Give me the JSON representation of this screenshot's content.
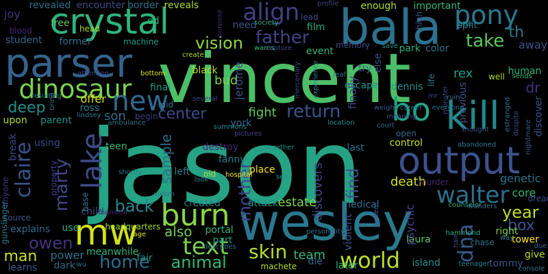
{
  "background_color": "#000000",
  "words": [
    {
      "text": "jason",
      "color": "#26a384"
    },
    {
      "text": "vincent",
      "color": "#4cbe67"
    },
    {
      "text": "wesley",
      "color": "#2a788e"
    },
    {
      "text": "bala",
      "color": "#2c718e"
    },
    {
      "text": "parser",
      "color": "#33638d"
    },
    {
      "text": "crystal",
      "color": "#2fb47c"
    },
    {
      "text": "output",
      "color": "#3b528b"
    },
    {
      "text": "kill",
      "color": "#23898e"
    },
    {
      "text": "mw",
      "color": "#d2e21b"
    },
    {
      "text": "dinosaur",
      "color": "#7ad151"
    },
    {
      "text": "burn",
      "color": "#8bd646"
    },
    {
      "text": "pony",
      "color": "#2a788e"
    },
    {
      "text": "bo",
      "color": "#20a486"
    },
    {
      "text": "new",
      "color": "#31688e"
    },
    {
      "text": "lake",
      "color": "#3e4a89"
    },
    {
      "text": "walter",
      "color": "#2c718e"
    },
    {
      "text": "world",
      "color": "#bddf26"
    },
    {
      "text": "text",
      "color": "#7ad151"
    },
    {
      "text": "align",
      "color": "#433e85"
    },
    {
      "text": "father",
      "color": "#414487"
    },
    {
      "text": "return",
      "color": "#3b528b"
    },
    {
      "text": "vision",
      "color": "#8fd744"
    },
    {
      "text": "take",
      "color": "#5ec962"
    },
    {
      "text": "home",
      "color": "#2f6c8e"
    },
    {
      "text": "animal",
      "color": "#35b779"
    },
    {
      "text": "skin",
      "color": "#b5de2b"
    },
    {
      "text": "claire",
      "color": "#3b528b"
    },
    {
      "text": "marty",
      "color": "#404688"
    },
    {
      "text": "center",
      "color": "#3e4989"
    },
    {
      "text": "back",
      "color": "#23898e"
    },
    {
      "text": "owen",
      "color": "#46337e"
    },
    {
      "text": "mother",
      "color": "#3e4989"
    },
    {
      "text": "dna",
      "color": "#365c8d"
    },
    {
      "text": "year",
      "color": "#c2df23"
    },
    {
      "text": "find",
      "color": "#3b528b"
    },
    {
      "text": "man",
      "color": "#c8e020"
    },
    {
      "text": "deep",
      "color": "#21918c"
    },
    {
      "text": "son",
      "color": "#2d708e"
    },
    {
      "text": "sample",
      "color": "#2e6e8e"
    },
    {
      "text": "box",
      "color": "#3b528b"
    },
    {
      "text": "bud",
      "color": "#7fd34e"
    },
    {
      "text": "also",
      "color": "#6ece58"
    },
    {
      "text": "fight",
      "color": "#67cc5c"
    },
    {
      "text": "discovers",
      "color": "#3e4989"
    },
    {
      "text": "estate",
      "color": "#7fd34e"
    },
    {
      "text": "death",
      "color": "#d8e219"
    },
    {
      "text": "genetic",
      "color": "#2c728e"
    },
    {
      "text": "core",
      "color": "#35b779"
    },
    {
      "text": "th",
      "color": "#2a788e"
    },
    {
      "text": "away",
      "color": "#3a548c"
    },
    {
      "text": "dr",
      "color": "#46307e"
    },
    {
      "text": "team",
      "color": "#35b779"
    },
    {
      "text": "created",
      "color": "#26828e"
    },
    {
      "text": "power",
      "color": "#2c718e"
    },
    {
      "text": "right",
      "color": "#7ad151"
    },
    {
      "text": "tower",
      "color": "#fde725"
    },
    {
      "text": "discover",
      "color": "#3b528b"
    },
    {
      "text": "escape",
      "color": "#21918c"
    },
    {
      "text": "finally",
      "color": "#404688"
    },
    {
      "text": "rex",
      "color": "#1fa088"
    },
    {
      "text": "human",
      "color": "#2fb47c"
    },
    {
      "text": "color",
      "color": "#2c728e"
    },
    {
      "text": "park",
      "color": "#29af7f"
    },
    {
      "text": "event",
      "color": "#35b779"
    },
    {
      "text": "memory",
      "color": "#3e4989"
    },
    {
      "text": "film",
      "color": "#29af7f"
    },
    {
      "text": "need",
      "color": "#3b528b"
    },
    {
      "text": "reveals",
      "color": "#addc30"
    },
    {
      "text": "border",
      "color": "#2d708e"
    },
    {
      "text": "encounter",
      "color": "#3e4a89"
    },
    {
      "text": "revealed",
      "color": "#2d708e"
    },
    {
      "text": "joy",
      "color": "#46327e"
    },
    {
      "text": "blood",
      "color": "#482576"
    },
    {
      "text": "student",
      "color": "#31688e"
    },
    {
      "text": "free",
      "color": "#5ec962"
    },
    {
      "text": "head",
      "color": "#addc30"
    },
    {
      "text": "former",
      "color": "#2c728e"
    },
    {
      "text": "machine",
      "color": "#1f9e89"
    },
    {
      "text": "ed",
      "color": "#35b779"
    },
    {
      "text": "black",
      "color": "#bddf26"
    },
    {
      "text": "jerome",
      "color": "#3b528b"
    },
    {
      "text": "final",
      "color": "#1f968b"
    },
    {
      "text": "mid",
      "color": "#2c718e"
    },
    {
      "text": "begin",
      "color": "#443983"
    },
    {
      "text": "offer",
      "color": "#dde318"
    },
    {
      "text": "ross",
      "color": "#2a788e"
    },
    {
      "text": "parent",
      "color": "#21918c"
    },
    {
      "text": "upon",
      "color": "#b2dd2d"
    },
    {
      "text": "break",
      "color": "#3e4989"
    },
    {
      "text": "anyone",
      "color": "#46327e"
    },
    {
      "text": "gunslinger",
      "color": "#26828e"
    },
    {
      "text": "source",
      "color": "#39568c"
    },
    {
      "text": "using",
      "color": "#3e4989"
    },
    {
      "text": "property",
      "color": "#433e85"
    },
    {
      "text": "explains",
      "color": "#31688e"
    },
    {
      "text": "use",
      "color": "#2fb47c"
    },
    {
      "text": "child",
      "color": "#3e4989"
    },
    {
      "text": "base",
      "color": "#2a788e"
    },
    {
      "text": "teen",
      "color": "#35b779"
    },
    {
      "text": "destroy",
      "color": "#482677"
    },
    {
      "text": "york",
      "color": "#31688e"
    },
    {
      "text": "fanny",
      "color": "#26828e"
    },
    {
      "text": "place",
      "color": "#fde725"
    },
    {
      "text": "left",
      "color": "#26828e"
    },
    {
      "text": "old",
      "color": "#addc30"
    },
    {
      "text": "look",
      "color": "#26828e"
    },
    {
      "text": "portal",
      "color": "#35b779"
    },
    {
      "text": "part",
      "color": "#1f9e89"
    },
    {
      "text": "attack",
      "color": "#21918c"
    },
    {
      "text": "medical",
      "color": "#2c728e"
    },
    {
      "text": "last",
      "color": "#2c718e"
    },
    {
      "text": "control",
      "color": "#c8e020"
    },
    {
      "text": "open",
      "color": "#31688e"
    },
    {
      "text": "murder",
      "color": "#482475"
    },
    {
      "text": "laura",
      "color": "#5ec962"
    },
    {
      "text": "island",
      "color": "#21918c"
    },
    {
      "text": "tommy",
      "color": "#3b528b"
    },
    {
      "text": "give",
      "color": "#bddf26"
    },
    {
      "text": "chase",
      "color": "#2c728e"
    },
    {
      "text": "die",
      "color": "#31688e"
    },
    {
      "text": "later",
      "color": "#29af7f"
    },
    {
      "text": "machete",
      "color": "#b5de2b"
    },
    {
      "text": "describes",
      "color": "#2c718e"
    },
    {
      "text": "meanwhile",
      "color": "#35b779"
    },
    {
      "text": "fair",
      "color": "#1f968b"
    },
    {
      "text": "dark",
      "color": "#31688e"
    },
    {
      "text": "learns",
      "color": "#38588c"
    },
    {
      "text": "hospital",
      "color": "#fde725"
    },
    {
      "text": "victim",
      "color": "#2c728e"
    },
    {
      "text": "headquarters",
      "color": "#a2da37"
    },
    {
      "text": "mansion",
      "color": "#482173"
    },
    {
      "text": "shortly",
      "color": "#2a788e"
    },
    {
      "text": "age",
      "color": "#dde318"
    },
    {
      "text": "violent",
      "color": "#3b528b"
    },
    {
      "text": "psychic",
      "color": "#404588"
    },
    {
      "text": "hammond",
      "color": "#29af7f"
    },
    {
      "text": "dream",
      "color": "#3e4989"
    },
    {
      "text": "counselor",
      "color": "#29af7f"
    },
    {
      "text": "wanders",
      "color": "#31688e"
    },
    {
      "text": "way",
      "color": "#2a788e"
    },
    {
      "text": "due",
      "color": "#31688e"
    },
    {
      "text": "console",
      "color": "#2c728e"
    },
    {
      "text": "teenager",
      "color": "#26828e"
    },
    {
      "text": "hair",
      "color": "#3e4989"
    },
    {
      "text": "wu",
      "color": "#2c718e"
    },
    {
      "text": "enough",
      "color": "#addc30"
    },
    {
      "text": "important",
      "color": "#35b779"
    },
    {
      "text": "split",
      "color": "#2c718e"
    },
    {
      "text": "able",
      "color": "#21918c"
    },
    {
      "text": "high",
      "color": "#38588c"
    },
    {
      "text": "else",
      "color": "#3b528b"
    },
    {
      "text": "try",
      "color": "#31688e"
    },
    {
      "text": "life",
      "color": "#2a788e"
    },
    {
      "text": "previous",
      "color": "#3b528b"
    },
    {
      "text": "well",
      "color": "#addc30"
    },
    {
      "text": "sends",
      "color": "#35b779"
    },
    {
      "text": "ruin",
      "color": "#2c728e"
    },
    {
      "text": "dennis",
      "color": "#21918c"
    },
    {
      "text": "career",
      "color": "#2c728e"
    },
    {
      "text": "weight",
      "color": "#38588c"
    },
    {
      "text": "everyone",
      "color": "#2c718e"
    },
    {
      "text": "court",
      "color": "#31688e"
    },
    {
      "text": "meaning",
      "color": "#3b528b"
    },
    {
      "text": "location",
      "color": "#21918c"
    },
    {
      "text": "estranged",
      "color": "#2c728e"
    },
    {
      "text": "despite",
      "color": "#3e4989"
    },
    {
      "text": "thought",
      "color": "#38588c"
    },
    {
      "text": "abandoned",
      "color": "#2a788e"
    },
    {
      "text": "nightmare",
      "color": "#38588c"
    },
    {
      "text": "experience",
      "color": "#26828e"
    },
    {
      "text": "leaf",
      "color": "#2c718e"
    },
    {
      "text": "mercenary",
      "color": "#404588"
    },
    {
      "text": "warns",
      "color": "#35b779"
    },
    {
      "text": "capture",
      "color": "#3e4989"
    },
    {
      "text": "save",
      "color": "#21918c"
    },
    {
      "text": "create",
      "color": "#addc30"
    },
    {
      "text": "several",
      "color": "#3e4989"
    },
    {
      "text": "society",
      "color": "#29af7f"
    },
    {
      "text": "purpose",
      "color": "#482677"
    },
    {
      "text": "profile",
      "color": "#404688"
    },
    {
      "text": "lead",
      "color": "#404688"
    },
    {
      "text": "attention",
      "color": "#404588"
    },
    {
      "text": "resulting",
      "color": "#2a788e"
    },
    {
      "text": "bring",
      "color": "#2c718e"
    },
    {
      "text": "lindsey",
      "color": "#2c728e"
    },
    {
      "text": "ambulance",
      "color": "#2c718e"
    },
    {
      "text": "summons",
      "color": "#21918c"
    },
    {
      "text": "pictures",
      "color": "#404588"
    },
    {
      "text": "bottom",
      "color": "#dde318"
    },
    {
      "text": "together",
      "color": "#21918c"
    },
    {
      "text": "see",
      "color": "#21918c"
    },
    {
      "text": "personality",
      "color": "#2c718e"
    },
    {
      "text": "system",
      "color": "#38588c"
    },
    {
      "text": "mr",
      "color": "#3e4989"
    },
    {
      "text": "monster",
      "color": "#404588"
    }
  ]
}
